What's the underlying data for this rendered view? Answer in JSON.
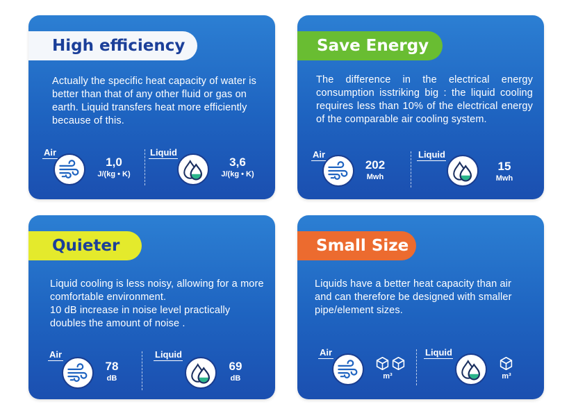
{
  "cards": [
    {
      "title": "High efficiency",
      "description": "Actually the specific heat capacity of water is better than that of any other fluid or gas on earth. Liquid transfers heat more efficiently because of this.",
      "air": {
        "label": "Air",
        "value": "1,0",
        "unit": "J/(kg • K)",
        "icon": "wind-icon"
      },
      "liquid": {
        "label": "Liquid",
        "value": "3,6",
        "unit": "J/(kg • K)",
        "icon": "liquid-drops-icon"
      }
    },
    {
      "title": "Save Energy",
      "description": "The difference in the electrical energy consumption isstriking big : the liquid cooling requires less than 10% of the electrical energy of the comparable air cooling system.",
      "air": {
        "label": "Air",
        "value": "202",
        "unit": "Mwh",
        "icon": "wind-icon"
      },
      "liquid": {
        "label": "Liquid",
        "value": "15",
        "unit": "Mwh",
        "icon": "liquid-drops-icon"
      }
    },
    {
      "title": "Quieter",
      "description": "Liquid cooling is less noisy, allowing for a more comfortable environment.\n10 dB increase in noise level practically doubles the amount of noise .",
      "air": {
        "label": "Air",
        "value": "78",
        "unit": "dB",
        "icon": "wind-icon"
      },
      "liquid": {
        "label": "Liquid",
        "value": "69",
        "unit": "dB",
        "icon": "liquid-drops-icon"
      }
    },
    {
      "title": "Small Size",
      "description": "Liquids have a better heat capacity than air and can therefore be designed with smaller pipe/element sizes.",
      "air": {
        "label": "Air",
        "unit": "m³",
        "icon": "wind-icon",
        "cubes": 2
      },
      "liquid": {
        "label": "Liquid",
        "unit": "m³",
        "icon": "liquid-drops-icon",
        "cubes": 1
      }
    }
  ],
  "colors": {
    "card": "#1e63c0",
    "navy": "#1b3f99",
    "white_pill": "#f4f7fb",
    "green_pill": "#69bd32",
    "yellow_pill": "#e4ea2c",
    "orange_pill": "#ec6b2f",
    "liquid_fill": "#2bb58a"
  }
}
